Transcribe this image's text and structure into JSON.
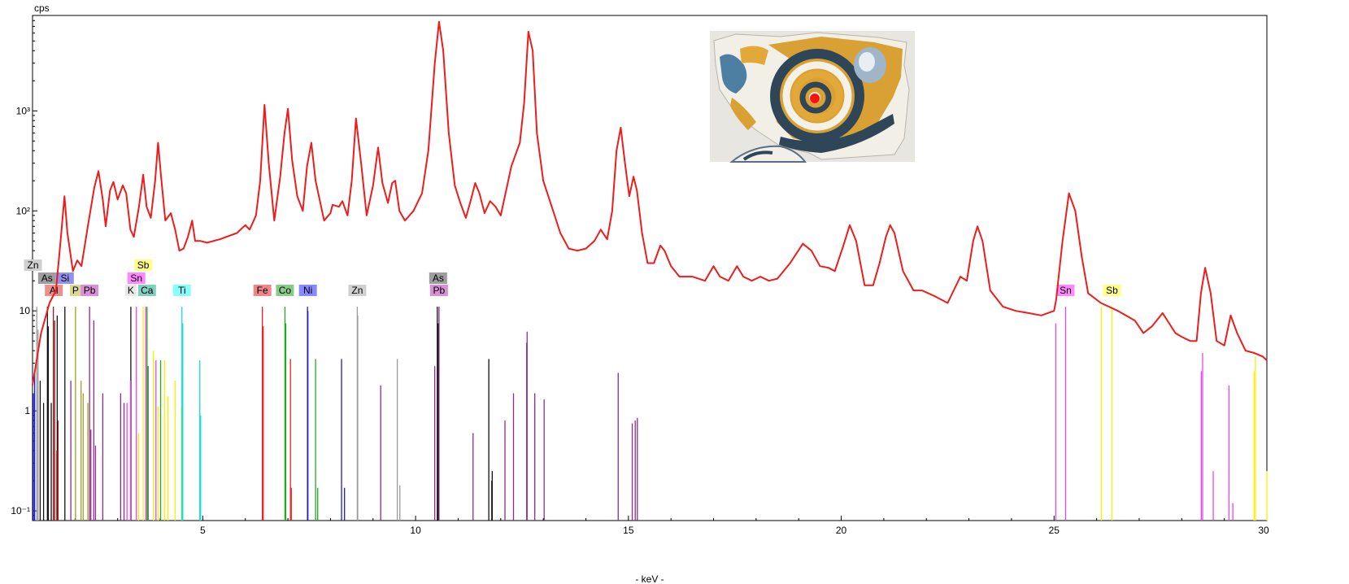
{
  "chart_data": {
    "type": "line",
    "ylabel": "cps",
    "xlabel": "- keV -",
    "xlim": [
      1.0,
      30.0
    ],
    "ylim": [
      0.08,
      9000
    ],
    "y_scale": "log",
    "x_ticks": [
      5,
      10,
      15,
      20,
      25,
      30
    ],
    "y_ticks": [
      {
        "value": 0.1,
        "label": "10⁻¹"
      },
      {
        "value": 1,
        "label": "1"
      },
      {
        "value": 10,
        "label": "10"
      },
      {
        "value": 100,
        "label": "10²"
      },
      {
        "value": 1000,
        "label": "10³"
      }
    ],
    "spectrum": {
      "color": "#ee1c1c",
      "points": [
        [
          1.0,
          1.8
        ],
        [
          1.2,
          6
        ],
        [
          1.4,
          12
        ],
        [
          1.55,
          16
        ],
        [
          1.65,
          45
        ],
        [
          1.75,
          140
        ],
        [
          1.82,
          60
        ],
        [
          1.95,
          25
        ],
        [
          2.05,
          32
        ],
        [
          2.15,
          28
        ],
        [
          2.3,
          70
        ],
        [
          2.45,
          170
        ],
        [
          2.55,
          250
        ],
        [
          2.65,
          130
        ],
        [
          2.72,
          70
        ],
        [
          2.82,
          160
        ],
        [
          2.9,
          195
        ],
        [
          3.0,
          130
        ],
        [
          3.12,
          180
        ],
        [
          3.2,
          150
        ],
        [
          3.3,
          65
        ],
        [
          3.38,
          55
        ],
        [
          3.5,
          110
        ],
        [
          3.6,
          230
        ],
        [
          3.68,
          110
        ],
        [
          3.78,
          85
        ],
        [
          3.88,
          200
        ],
        [
          3.95,
          480
        ],
        [
          4.02,
          220
        ],
        [
          4.12,
          80
        ],
        [
          4.25,
          95
        ],
        [
          4.35,
          65
        ],
        [
          4.45,
          40
        ],
        [
          4.55,
          42
        ],
        [
          4.65,
          55
        ],
        [
          4.75,
          80
        ],
        [
          4.82,
          50
        ],
        [
          4.95,
          50
        ],
        [
          5.1,
          48
        ],
        [
          5.4,
          52
        ],
        [
          5.8,
          60
        ],
        [
          6.0,
          72
        ],
        [
          6.1,
          65
        ],
        [
          6.25,
          90
        ],
        [
          6.35,
          200
        ],
        [
          6.45,
          1150
        ],
        [
          6.55,
          300
        ],
        [
          6.68,
          80
        ],
        [
          6.82,
          220
        ],
        [
          6.92,
          600
        ],
        [
          7.0,
          1050
        ],
        [
          7.1,
          320
        ],
        [
          7.22,
          140
        ],
        [
          7.35,
          100
        ],
        [
          7.45,
          280
        ],
        [
          7.55,
          480
        ],
        [
          7.65,
          200
        ],
        [
          7.85,
          80
        ],
        [
          8.0,
          95
        ],
        [
          8.05,
          115
        ],
        [
          8.2,
          110
        ],
        [
          8.28,
          125
        ],
        [
          8.4,
          90
        ],
        [
          8.5,
          200
        ],
        [
          8.6,
          840
        ],
        [
          8.72,
          300
        ],
        [
          8.85,
          90
        ],
        [
          9.0,
          180
        ],
        [
          9.12,
          430
        ],
        [
          9.22,
          190
        ],
        [
          9.35,
          120
        ],
        [
          9.45,
          190
        ],
        [
          9.52,
          200
        ],
        [
          9.62,
          100
        ],
        [
          9.75,
          80
        ],
        [
          9.95,
          100
        ],
        [
          10.15,
          150
        ],
        [
          10.3,
          400
        ],
        [
          10.45,
          3000
        ],
        [
          10.55,
          7800
        ],
        [
          10.65,
          4000
        ],
        [
          10.78,
          600
        ],
        [
          10.92,
          180
        ],
        [
          11.05,
          120
        ],
        [
          11.18,
          85
        ],
        [
          11.3,
          130
        ],
        [
          11.4,
          190
        ],
        [
          11.5,
          150
        ],
        [
          11.62,
          95
        ],
        [
          11.75,
          125
        ],
        [
          11.88,
          110
        ],
        [
          12.0,
          90
        ],
        [
          12.25,
          280
        ],
        [
          12.45,
          480
        ],
        [
          12.55,
          1200
        ],
        [
          12.65,
          6200
        ],
        [
          12.75,
          4000
        ],
        [
          12.85,
          600
        ],
        [
          13.0,
          200
        ],
        [
          13.2,
          110
        ],
        [
          13.4,
          60
        ],
        [
          13.6,
          42
        ],
        [
          13.8,
          40
        ],
        [
          14.0,
          42
        ],
        [
          14.2,
          50
        ],
        [
          14.35,
          65
        ],
        [
          14.5,
          52
        ],
        [
          14.62,
          100
        ],
        [
          14.72,
          400
        ],
        [
          14.82,
          680
        ],
        [
          14.92,
          300
        ],
        [
          15.02,
          140
        ],
        [
          15.12,
          220
        ],
        [
          15.2,
          160
        ],
        [
          15.32,
          60
        ],
        [
          15.45,
          30
        ],
        [
          15.6,
          30
        ],
        [
          15.75,
          45
        ],
        [
          15.85,
          40
        ],
        [
          16.0,
          28
        ],
        [
          16.2,
          22
        ],
        [
          16.5,
          22
        ],
        [
          16.8,
          20
        ],
        [
          17.0,
          28
        ],
        [
          17.15,
          22
        ],
        [
          17.35,
          20
        ],
        [
          17.55,
          28
        ],
        [
          17.7,
          22
        ],
        [
          17.9,
          20
        ],
        [
          18.1,
          22
        ],
        [
          18.3,
          20
        ],
        [
          18.5,
          21
        ],
        [
          18.8,
          30
        ],
        [
          19.1,
          47
        ],
        [
          19.3,
          40
        ],
        [
          19.5,
          28
        ],
        [
          19.7,
          27
        ],
        [
          19.85,
          25
        ],
        [
          20.05,
          45
        ],
        [
          20.2,
          72
        ],
        [
          20.35,
          50
        ],
        [
          20.55,
          18
        ],
        [
          20.75,
          18
        ],
        [
          20.9,
          30
        ],
        [
          21.05,
          55
        ],
        [
          21.15,
          72
        ],
        [
          21.25,
          60
        ],
        [
          21.45,
          25
        ],
        [
          21.7,
          16
        ],
        [
          21.9,
          16
        ],
        [
          22.2,
          14
        ],
        [
          22.5,
          12
        ],
        [
          22.8,
          22
        ],
        [
          22.95,
          20
        ],
        [
          23.1,
          50
        ],
        [
          23.2,
          70
        ],
        [
          23.32,
          50
        ],
        [
          23.5,
          16
        ],
        [
          23.8,
          11
        ],
        [
          24.1,
          10
        ],
        [
          24.4,
          9.5
        ],
        [
          24.7,
          9
        ],
        [
          25.0,
          10
        ],
        [
          25.05,
          13
        ],
        [
          25.2,
          50
        ],
        [
          25.35,
          150
        ],
        [
          25.5,
          100
        ],
        [
          25.65,
          35
        ],
        [
          25.8,
          15
        ],
        [
          26.1,
          12
        ],
        [
          26.5,
          10
        ],
        [
          26.9,
          8
        ],
        [
          27.1,
          6
        ],
        [
          27.3,
          7
        ],
        [
          27.55,
          9.5
        ],
        [
          27.85,
          6
        ],
        [
          28.0,
          5.5
        ],
        [
          28.2,
          5
        ],
        [
          28.35,
          5
        ],
        [
          28.45,
          15
        ],
        [
          28.55,
          27
        ],
        [
          28.68,
          15
        ],
        [
          28.82,
          5
        ],
        [
          29.0,
          4.5
        ],
        [
          29.15,
          9
        ],
        [
          29.3,
          6
        ],
        [
          29.5,
          4
        ],
        [
          29.7,
          3.8
        ],
        [
          29.9,
          3.5
        ],
        [
          30.0,
          3.2
        ]
      ]
    },
    "element_lines": [
      {
        "color": "#1a1ae0",
        "lines": [
          [
            1.02,
            1.5
          ],
          [
            1.05,
            2.5
          ],
          [
            7.46,
            11
          ],
          [
            7.47,
            10
          ],
          [
            8.26,
            3.3
          ],
          [
            8.33,
            0.17
          ]
        ]
      },
      {
        "color": "#9a9a9a",
        "lines": [
          [
            1.1,
            11
          ],
          [
            1.13,
            6.5
          ],
          [
            8.63,
            11
          ],
          [
            8.64,
            9
          ],
          [
            9.57,
            3.3
          ],
          [
            9.63,
            0.18
          ]
        ]
      },
      {
        "color": "#111111",
        "lines": [
          [
            1.18,
            2
          ],
          [
            1.26,
            1.2
          ],
          [
            1.35,
            11
          ],
          [
            1.37,
            7
          ],
          [
            1.44,
            1.2
          ],
          [
            1.58,
            9
          ],
          [
            1.76,
            11
          ],
          [
            10.51,
            11
          ],
          [
            10.53,
            7.5
          ],
          [
            11.72,
            3.3
          ],
          [
            11.79,
            0.2
          ],
          [
            11.8,
            0.25
          ],
          [
            3.31,
            11
          ]
        ]
      },
      {
        "color": "#a01e1e",
        "lines": [
          [
            1.49,
            11
          ],
          [
            1.52,
            8
          ],
          [
            1.57,
            0.4
          ],
          [
            1.6,
            0.8
          ]
        ]
      },
      {
        "color": "#a0a020",
        "lines": [
          [
            2.01,
            11
          ],
          [
            2.14,
            2
          ],
          [
            2.19,
            1.5
          ],
          [
            2.3,
            1.2
          ]
        ]
      },
      {
        "color": "#8e2a8e",
        "lines": [
          [
            1.9,
            2
          ],
          [
            2.34,
            11
          ],
          [
            2.44,
            8
          ],
          [
            2.37,
            0.65
          ],
          [
            2.48,
            0.45
          ],
          [
            2.65,
            1.5
          ],
          [
            3.07,
            1.5
          ],
          [
            3.15,
            1.2
          ],
          [
            9.18,
            1.8
          ],
          [
            10.45,
            2.8
          ],
          [
            10.55,
            11
          ],
          [
            11.35,
            0.6
          ],
          [
            12.1,
            0.8
          ],
          [
            12.3,
            1.5
          ],
          [
            12.61,
            4.8
          ],
          [
            12.62,
            6.2
          ],
          [
            12.8,
            1.5
          ],
          [
            13.02,
            1.3
          ],
          [
            14.76,
            2.4
          ],
          [
            15.09,
            0.75
          ],
          [
            15.16,
            0.8
          ],
          [
            15.21,
            0.85
          ]
        ]
      },
      {
        "color": "#ee44ee",
        "lines": [
          [
            3.44,
            11
          ],
          [
            3.66,
            11
          ],
          [
            3.72,
            2.8
          ],
          [
            3.9,
            3.2
          ],
          [
            3.3,
            2
          ],
          [
            3.22,
            1.2
          ],
          [
            25.04,
            7.5
          ],
          [
            25.27,
            11
          ],
          [
            28.49,
            3.8
          ],
          [
            28.46,
            2.5
          ],
          [
            28.74,
            0.25
          ],
          [
            29.11,
            1.8
          ],
          [
            29.2,
            0.12
          ]
        ]
      },
      {
        "color": "#ffee00",
        "lines": [
          [
            3.6,
            11
          ],
          [
            3.49,
            0.6
          ],
          [
            3.84,
            4
          ],
          [
            4.1,
            3.2
          ],
          [
            4.18,
            1.4
          ],
          [
            4.35,
            2
          ],
          [
            4.5,
            1.1
          ],
          [
            3.95,
            1.1
          ],
          [
            26.11,
            11
          ],
          [
            26.36,
            11
          ],
          [
            29.7,
            2.5
          ],
          [
            29.73,
            3.5
          ],
          [
            30.0,
            0.25
          ]
        ]
      },
      {
        "color": "#22aa22",
        "lines": [
          [
            3.69,
            11
          ],
          [
            3.71,
            2.8
          ],
          [
            4.01,
            3.2
          ],
          [
            6.93,
            11
          ],
          [
            6.95,
            7.5
          ],
          [
            7.65,
            3.3
          ],
          [
            7.7,
            0.17
          ]
        ]
      },
      {
        "color": "#11dddd",
        "lines": [
          [
            4.51,
            11
          ],
          [
            4.53,
            7.5
          ],
          [
            4.93,
            3.2
          ],
          [
            4.95,
            0.9
          ]
        ]
      },
      {
        "color": "#ee2020",
        "lines": [
          [
            6.4,
            11
          ],
          [
            6.42,
            7
          ],
          [
            7.06,
            3.3
          ],
          [
            7.08,
            0.17
          ]
        ]
      }
    ],
    "element_labels": [
      {
        "text": "Zn",
        "x": 1.01,
        "row": 3,
        "color": "#d0d0d0"
      },
      {
        "text": "As",
        "x": 1.34,
        "row": 2,
        "color": "#9e9e9e"
      },
      {
        "text": "Si",
        "x": 1.76,
        "row": 2,
        "color": "#9090ee"
      },
      {
        "text": "Al",
        "x": 1.5,
        "row": 1,
        "color": "#e89090"
      },
      {
        "text": "P",
        "x": 2.01,
        "row": 1,
        "color": "#d8d890"
      },
      {
        "text": "Pb",
        "x": 2.34,
        "row": 1,
        "color": "#d890d8"
      },
      {
        "text": "Sb",
        "x": 3.6,
        "row": 3,
        "color": "#ffff88"
      },
      {
        "text": "Sn",
        "x": 3.44,
        "row": 2,
        "color": "#ff88ff"
      },
      {
        "text": "K",
        "x": 3.31,
        "row": 1,
        "color": "#e8e8e8"
      },
      {
        "text": "Ca",
        "x": 3.69,
        "row": 1,
        "color": "#80d0c0"
      },
      {
        "text": "Ti",
        "x": 4.51,
        "row": 1,
        "color": "#88ffff"
      },
      {
        "text": "Fe",
        "x": 6.4,
        "row": 1,
        "color": "#ee8888"
      },
      {
        "text": "Co",
        "x": 6.93,
        "row": 1,
        "color": "#88cc88"
      },
      {
        "text": "Ni",
        "x": 7.47,
        "row": 1,
        "color": "#8888ff"
      },
      {
        "text": "Zn",
        "x": 8.63,
        "row": 1,
        "color": "#d0d0d0"
      },
      {
        "text": "As",
        "x": 10.53,
        "row": 2,
        "color": "#9e9e9e"
      },
      {
        "text": "Pb",
        "x": 10.55,
        "row": 1,
        "color": "#d890d8"
      },
      {
        "text": "Sn",
        "x": 25.27,
        "row": 1,
        "color": "#ff88ff"
      },
      {
        "text": "Sb",
        "x": 26.36,
        "row": 1,
        "color": "#ffff88"
      }
    ]
  }
}
